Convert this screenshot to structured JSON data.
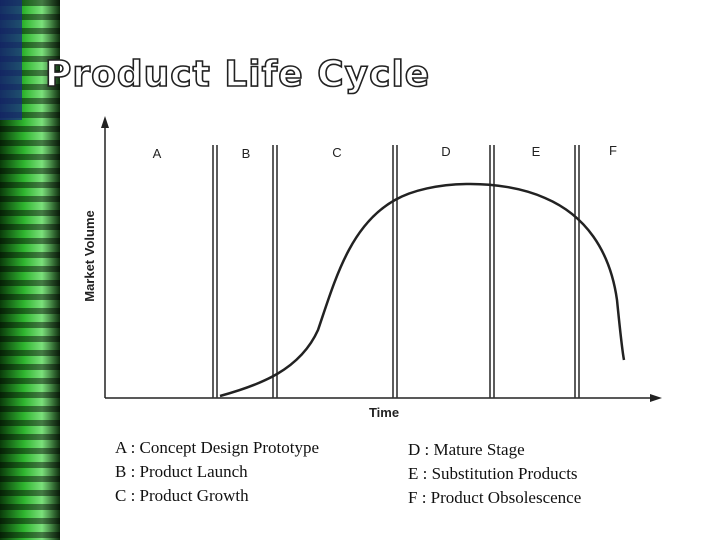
{
  "header": {
    "title": "Product Life Cycle"
  },
  "diagram": {
    "y_axis_label": "Market Volume",
    "x_axis_label": "Time",
    "stages": [
      "A",
      "B",
      "C",
      "D",
      "E",
      "F"
    ]
  },
  "legend": {
    "left": [
      "A : Concept Design Prototype",
      "B : Product Launch",
      "C : Product Growth"
    ],
    "right": [
      "D : Mature Stage",
      "E : Substitution Products",
      "F : Product Obsolescence"
    ]
  }
}
